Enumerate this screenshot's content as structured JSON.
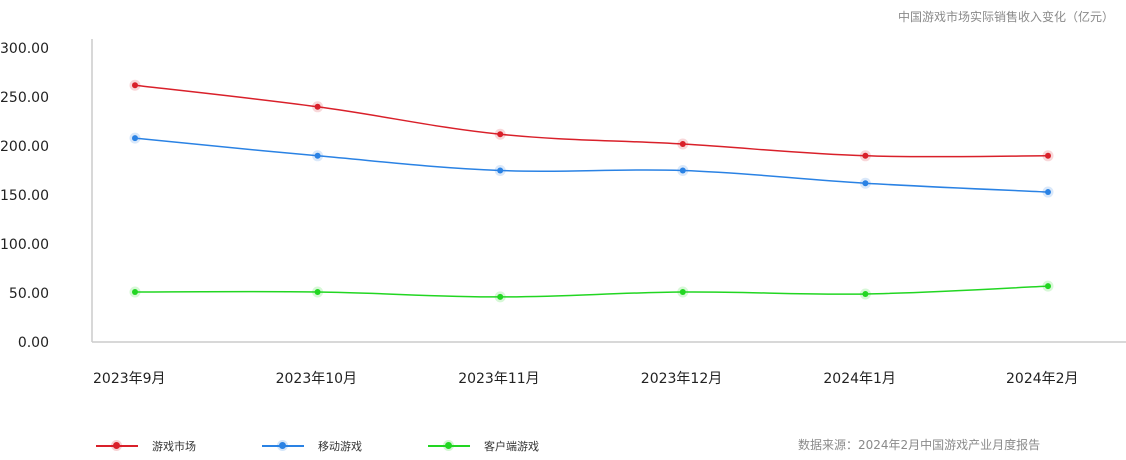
{
  "title": "中国游戏市场实际销售收入变化（亿元）",
  "source": "数据来源：2024年2月中国游戏产业月度报告",
  "chart_data": {
    "type": "line",
    "categories": [
      "2023年9月",
      "2023年10月",
      "2023年11月",
      "2023年12月",
      "2024年1月",
      "2024年2月"
    ],
    "yticks": [
      "0.00",
      "50.00",
      "100.00",
      "150.00",
      "200.00",
      "250.00",
      "300.00"
    ],
    "ylim": [
      0,
      300
    ],
    "series": [
      {
        "name": "游戏市场",
        "color": "#d9202a",
        "values": [
          262,
          240,
          212,
          202,
          190,
          190
        ]
      },
      {
        "name": "移动游戏",
        "color": "#2a82e4",
        "values": [
          208,
          190,
          175,
          175,
          162,
          153
        ]
      },
      {
        "name": "客户端游戏",
        "color": "#22d622",
        "values": [
          51,
          51,
          46,
          51,
          49,
          57
        ]
      }
    ],
    "grid": false,
    "legend": "bottom-left"
  }
}
